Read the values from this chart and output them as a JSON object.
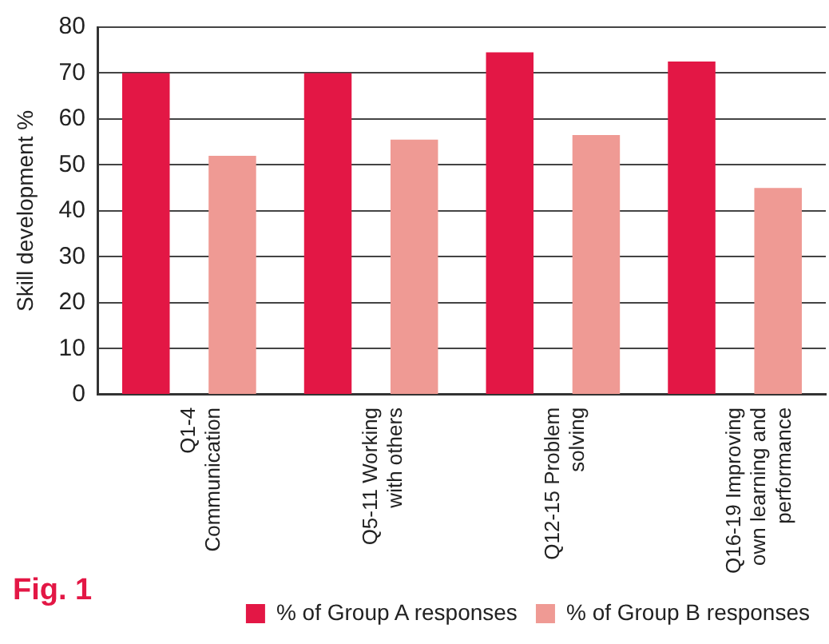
{
  "chart_data": {
    "type": "bar",
    "ylabel": "Skill development %",
    "categories": [
      "Q1-4 Communication",
      "Q5-11 Working with others",
      "Q12-15 Problem solving",
      "Q16-19 Improving own learning and performance"
    ],
    "series": [
      {
        "name": "% of Group A responses",
        "color": "#e31745",
        "values": [
          70,
          70,
          74.5,
          72.5
        ]
      },
      {
        "name": "% of Group B responses",
        "color": "#ef9a94",
        "values": [
          52,
          55.5,
          56.5,
          45
        ]
      }
    ],
    "ylim": [
      0,
      80
    ],
    "yticks": [
      0,
      10,
      20,
      30,
      40,
      50,
      60,
      70,
      80
    ],
    "grid": "y",
    "legend": "bottom right",
    "annotations": [
      "Fig. 1"
    ]
  }
}
